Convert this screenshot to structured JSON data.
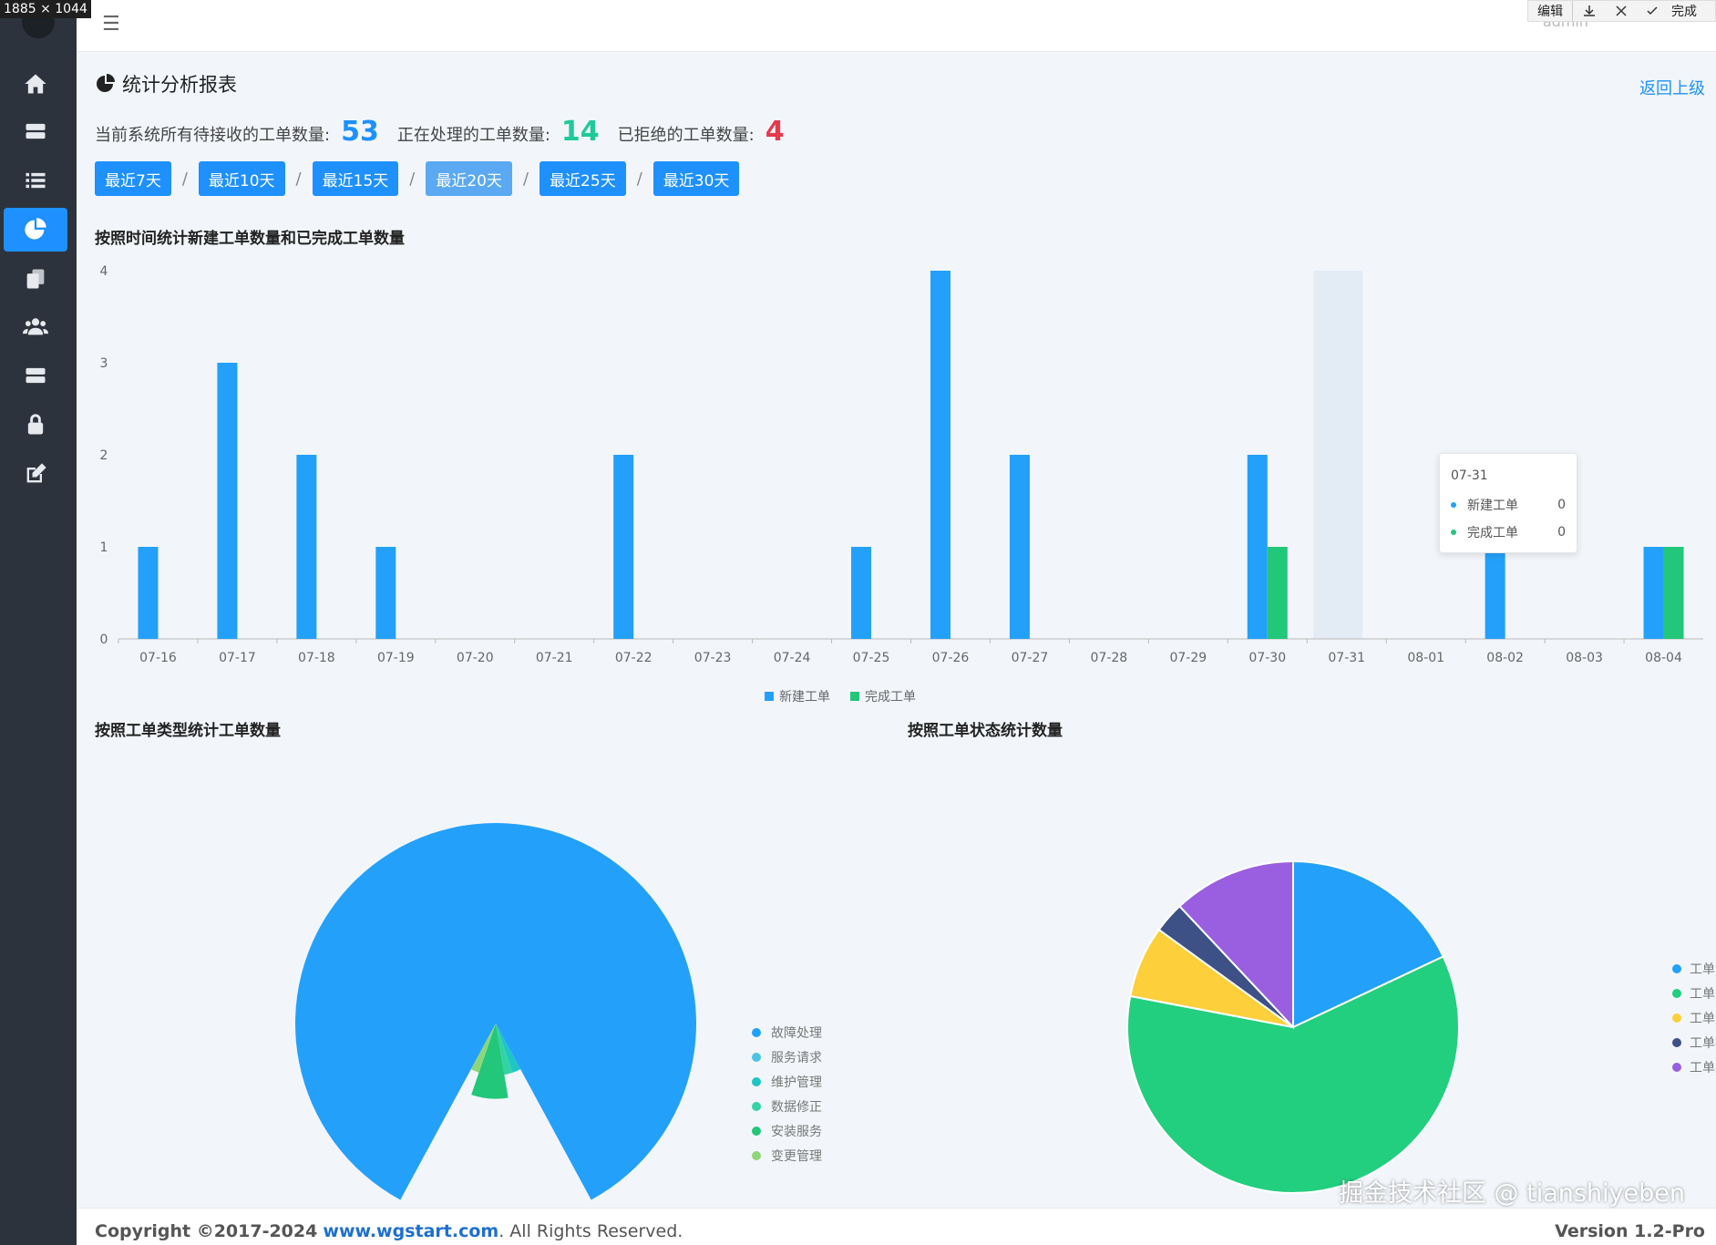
{
  "window": {
    "size_badge": "1885 × 1044"
  },
  "edit_toolbar": {
    "edit_label": "编辑",
    "done_label": "完成"
  },
  "header": {
    "user": "admin"
  },
  "page": {
    "title": "统计分析报表",
    "back_label": "返回上级",
    "stats": {
      "pending_label": "当前系统所有待接收的工单数量:",
      "pending_value": "53",
      "processing_label": "正在处理的工单数量:",
      "processing_value": "14",
      "rejected_label": "已拒绝的工单数量:",
      "rejected_value": "4"
    },
    "ranges": [
      "最近7天",
      "最近10天",
      "最近15天",
      "最近20天",
      "最近25天",
      "最近30天"
    ],
    "range_separator": "/",
    "active_range_index": 3,
    "sections": {
      "bar_title": "按照时间统计新建工单数量和已完成工单数量",
      "type_title": "按照工单类型统计工单数量",
      "status_title": "按照工单状态统计数量"
    }
  },
  "tooltip": {
    "date": "07-31",
    "rows": [
      {
        "label": "新建工单",
        "value": "0"
      },
      {
        "label": "完成工单",
        "value": "0"
      }
    ]
  },
  "colors": {
    "accent": "#1e90ff",
    "new": "#23a0fa",
    "done": "#22c77a",
    "teal": "#1fc99a",
    "red": "#e6394d"
  },
  "chart_data": [
    {
      "type": "bar",
      "categories": [
        "07-16",
        "07-17",
        "07-18",
        "07-19",
        "07-20",
        "07-21",
        "07-22",
        "07-23",
        "07-24",
        "07-25",
        "07-26",
        "07-27",
        "07-28",
        "07-29",
        "07-30",
        "07-31",
        "08-01",
        "08-02",
        "08-03",
        "08-04"
      ],
      "series": [
        {
          "name": "新建工单",
          "values": [
            1,
            3,
            2,
            1,
            0,
            0,
            2,
            0,
            0,
            1,
            4,
            2,
            0,
            0,
            2,
            0,
            0,
            1,
            0,
            1
          ],
          "color": "#23a0fa"
        },
        {
          "name": "完成工单",
          "values": [
            0,
            0,
            0,
            0,
            0,
            0,
            0,
            0,
            0,
            0,
            0,
            0,
            0,
            0,
            1,
            0,
            0,
            0,
            0,
            1
          ],
          "color": "#22c77a"
        }
      ],
      "ylim": [
        0,
        4
      ],
      "yticks": [
        0,
        1,
        2,
        3,
        4
      ],
      "highlight_category": "07-31",
      "legend_position": "bottom",
      "grid": false
    },
    {
      "type": "pie",
      "variant": "rose",
      "categories": [
        "故障处理",
        "服务请求",
        "维护管理",
        "数据修正",
        "安装服务",
        "变更管理"
      ],
      "values": [
        32,
        0,
        1,
        1,
        3,
        1
      ],
      "colors": [
        "#23a0fa",
        "#4cc3e6",
        "#1dc6c4",
        "#34d3a6",
        "#22c77a",
        "#8ed67a"
      ],
      "legend_position": "right"
    },
    {
      "type": "pie",
      "categories": [
        "工单评论次数",
        "工单处理次数",
        "工单关闭次数",
        "工单拒绝次数",
        "工单完成数量"
      ],
      "values": [
        18,
        60,
        7,
        3,
        12
      ],
      "colors": [
        "#23a0fa",
        "#22cf7f",
        "#fccf3b",
        "#3d5187",
        "#9a5fe0"
      ],
      "legend_position": "right"
    }
  ],
  "footer": {
    "copyright_prefix": "Copyright ©2017-2024",
    "site": "www.wgstart.com",
    "suffix": "All Rights Reserved.",
    "version": "Version 1.2-Pro"
  },
  "watermark": "掘金技术社区 @ tianshiyeben"
}
